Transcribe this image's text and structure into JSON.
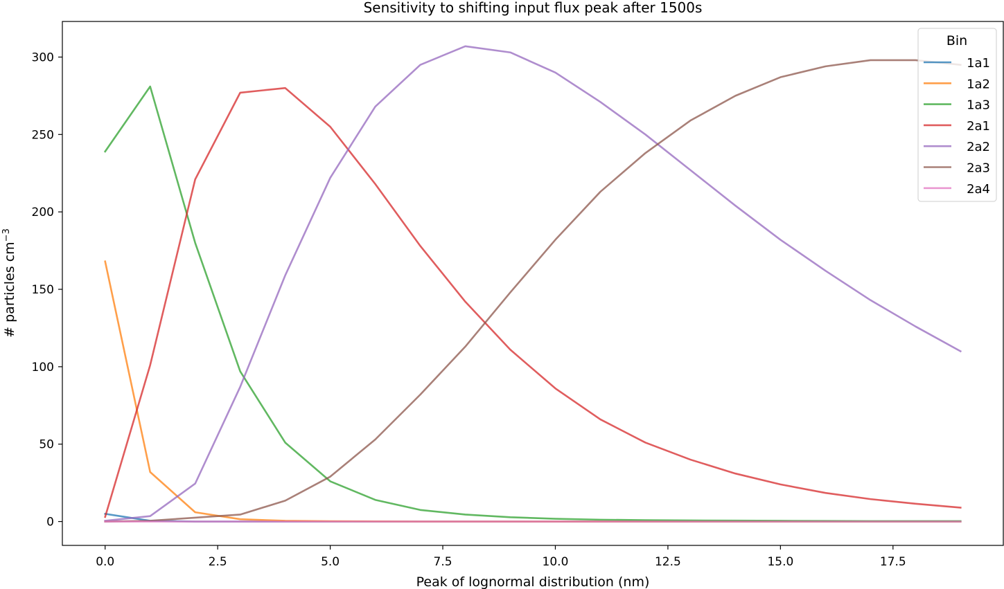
{
  "chart_data": {
    "type": "line",
    "title": "Sensitivity to shifting input flux peak after 1500s",
    "xlabel": "Peak of lognormal distribution (nm)",
    "ylabel": "# particles cm",
    "ylabel_superscript": "−3",
    "xlim": [
      -0.95,
      19.95
    ],
    "ylim": [
      -15.4,
      323
    ],
    "xticks": [
      0.0,
      2.5,
      5.0,
      7.5,
      10.0,
      12.5,
      15.0,
      17.5
    ],
    "xtick_labels": [
      "0.0",
      "2.5",
      "5.0",
      "7.5",
      "10.0",
      "12.5",
      "15.0",
      "17.5"
    ],
    "yticks": [
      0,
      50,
      100,
      150,
      200,
      250,
      300
    ],
    "ytick_labels": [
      "0",
      "50",
      "100",
      "150",
      "200",
      "250",
      "300"
    ],
    "grid": false,
    "legend": {
      "title": "Bin",
      "placement": "top-right"
    },
    "x": [
      0,
      1,
      2,
      3,
      4,
      5,
      6,
      7,
      8,
      9,
      10,
      11,
      12,
      13,
      14,
      15,
      16,
      17,
      18,
      19
    ],
    "series": [
      {
        "name": "1a1",
        "color": "#1f77b4",
        "values": [
          5,
          0.5,
          0,
          0,
          0,
          0,
          0,
          0,
          0,
          0,
          0,
          0,
          0,
          0,
          0,
          0,
          0,
          0,
          0,
          0
        ]
      },
      {
        "name": "1a2",
        "color": "#ff7f0e",
        "values": [
          168,
          32,
          6,
          1.5,
          0.5,
          0.2,
          0.1,
          0,
          0,
          0,
          0,
          0,
          0,
          0,
          0,
          0,
          0,
          0,
          0,
          0
        ]
      },
      {
        "name": "1a3",
        "color": "#2ca02c",
        "values": [
          239,
          281,
          180,
          97,
          51,
          26,
          14,
          7.5,
          4.5,
          2.8,
          1.8,
          1.2,
          0.9,
          0.7,
          0.6,
          0.5,
          0.4,
          0.3,
          0.3,
          0.3
        ]
      },
      {
        "name": "2a1",
        "color": "#d62728",
        "values": [
          3,
          101,
          221,
          277,
          280,
          255,
          218,
          178,
          142,
          111,
          86,
          66,
          51,
          40,
          31,
          24,
          18.5,
          14.5,
          11.5,
          9
        ]
      },
      {
        "name": "2a2",
        "color": "#9467bd",
        "values": [
          0.5,
          3.5,
          24.5,
          87,
          159,
          222,
          268,
          295,
          307,
          303,
          290,
          271,
          250,
          227,
          204,
          182,
          162,
          143,
          126,
          110
        ]
      },
      {
        "name": "2a3",
        "color": "#8c564b",
        "values": [
          0,
          0.5,
          2.5,
          4.5,
          13.5,
          29,
          53,
          82,
          113,
          148,
          182,
          213,
          238,
          259,
          275,
          287,
          294,
          298,
          298,
          295
        ]
      },
      {
        "name": "2a4",
        "color": "#e377c2",
        "values": [
          0,
          0,
          0,
          0,
          0,
          0,
          0,
          0,
          0,
          0,
          0,
          0,
          0,
          0,
          0,
          0,
          0,
          0,
          0,
          0
        ]
      }
    ]
  }
}
